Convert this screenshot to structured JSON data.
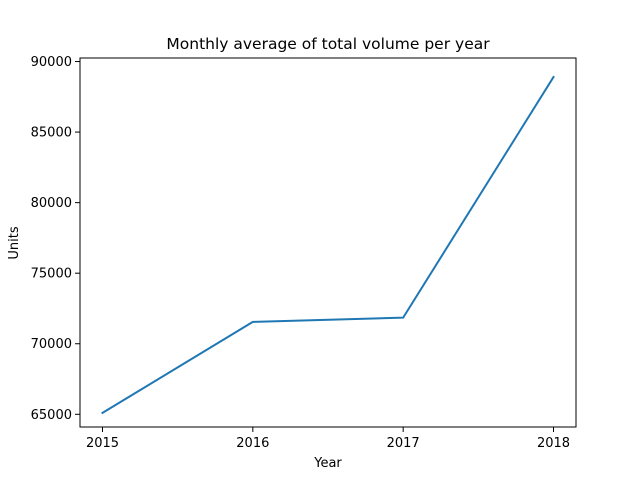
{
  "chart_data": {
    "type": "line",
    "title": "Monthly average of total volume per year",
    "xlabel": "Year",
    "ylabel": "Units",
    "x": [
      "2015",
      "2016",
      "2017",
      "2018"
    ],
    "series": [
      {
        "name": "",
        "color": "#1f77b4",
        "values": [
          65100,
          71550,
          71850,
          88900
        ]
      }
    ],
    "ylim": [
      64100,
      90250
    ],
    "yticks": [
      65000,
      70000,
      75000,
      80000,
      85000,
      90000
    ],
    "ytick_labels": [
      "65000",
      "70000",
      "75000",
      "80000",
      "85000",
      "90000"
    ],
    "grid": false,
    "legend": "none"
  }
}
